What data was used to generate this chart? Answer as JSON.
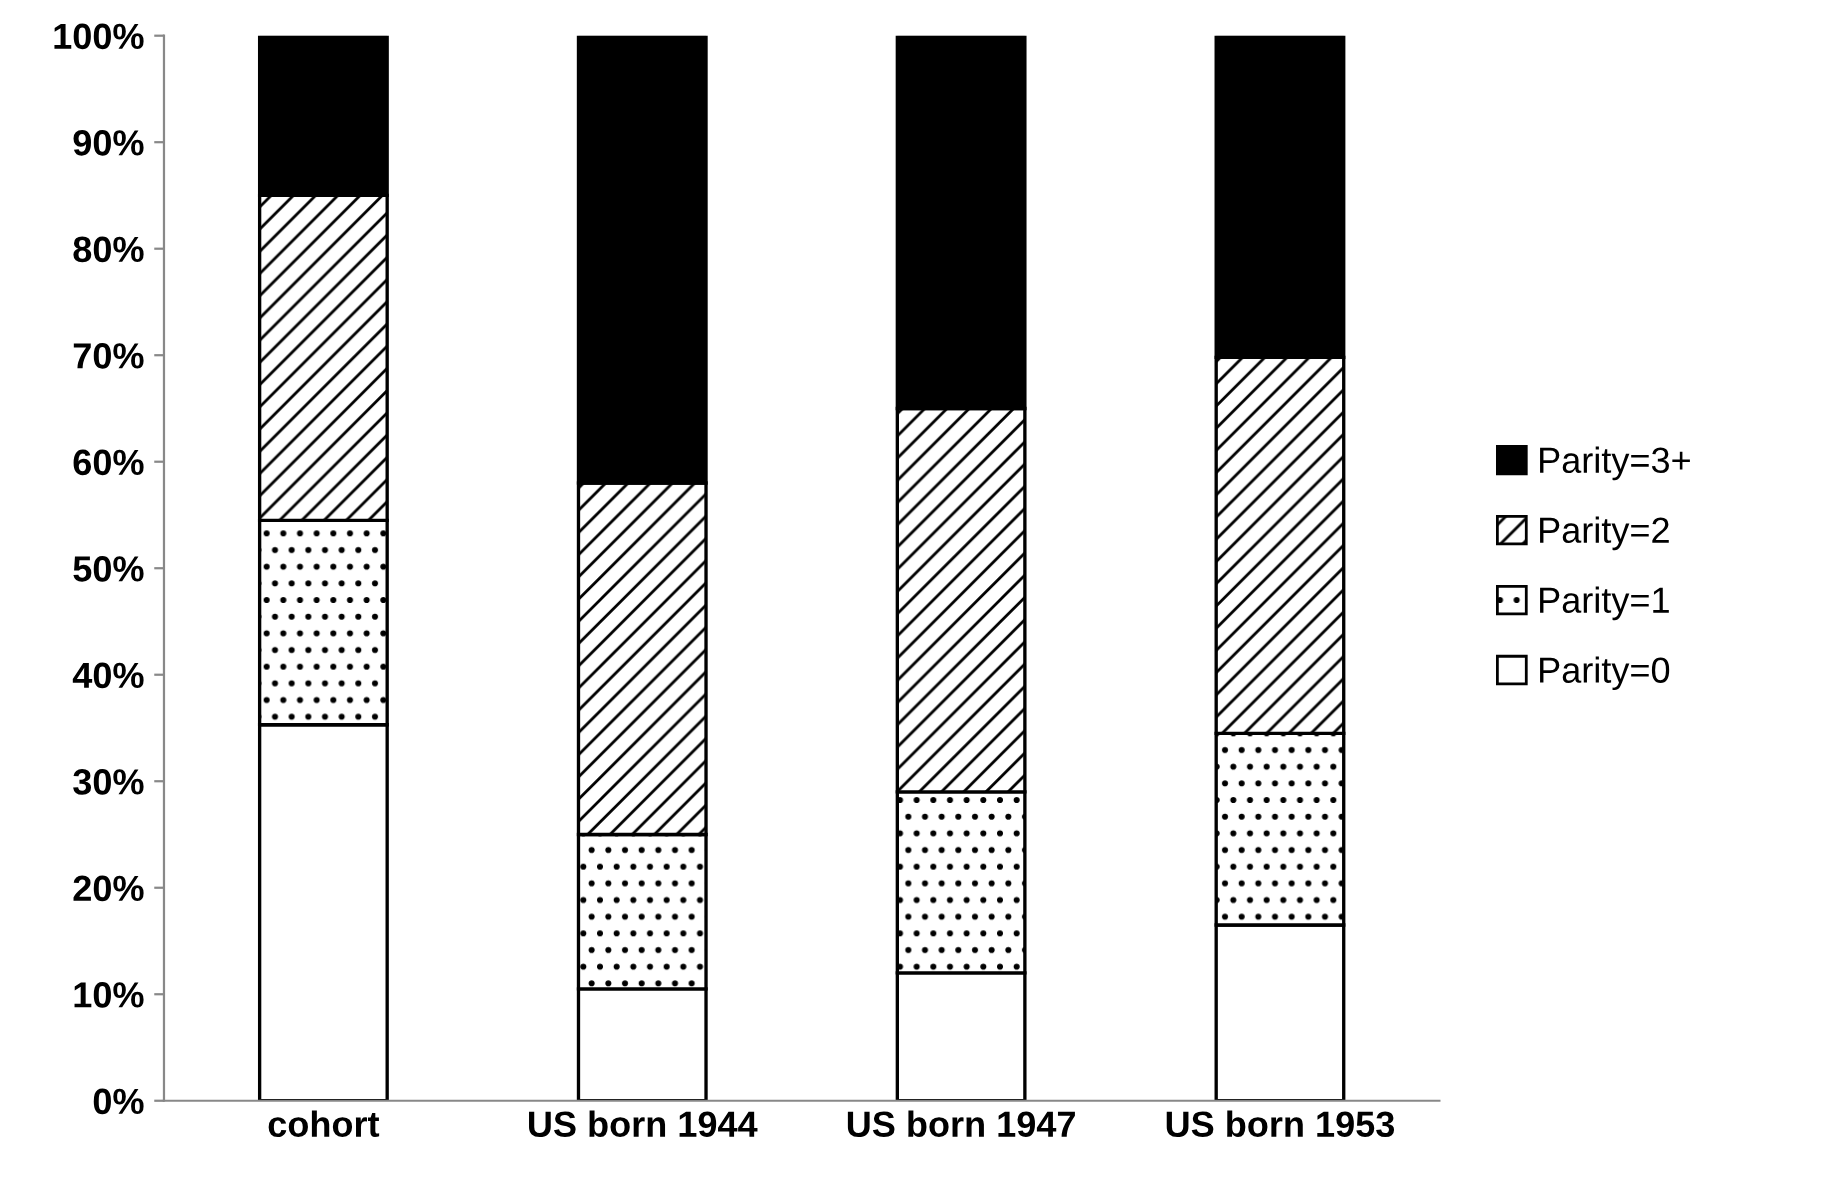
{
  "chart_data": {
    "type": "bar",
    "stacked": true,
    "categories": [
      "cohort",
      "US born 1944",
      "US born 1947",
      "US born 1953"
    ],
    "series": [
      {
        "name": "Parity=0",
        "color": "#ffffff",
        "values": [
          35.3,
          10.5,
          12,
          16.5
        ]
      },
      {
        "name": "Parity=1",
        "color": "#000000",
        "values": [
          19.2,
          14.5,
          17,
          18
        ]
      },
      {
        "name": "Parity=2",
        "color": "#000000",
        "values": [
          30.5,
          33,
          36,
          35.3
        ]
      },
      {
        "name": "Parity=3+",
        "color": "#000000",
        "values": [
          15,
          42,
          35,
          30.2
        ]
      }
    ],
    "ylim": [
      0,
      100
    ],
    "yticks": [
      {
        "value": 0,
        "label": "0%"
      },
      {
        "value": 10,
        "label": "10%"
      },
      {
        "value": 20,
        "label": "20%"
      },
      {
        "value": 30,
        "label": "30%"
      },
      {
        "value": 40,
        "label": "40%"
      },
      {
        "value": 50,
        "label": "50%"
      },
      {
        "value": 60,
        "label": "60%"
      },
      {
        "value": 70,
        "label": "70%"
      },
      {
        "value": 80,
        "label": "80%"
      },
      {
        "value": 90,
        "label": "90%"
      },
      {
        "value": 100,
        "label": "100%"
      }
    ],
    "grid": false,
    "legend": "right"
  }
}
